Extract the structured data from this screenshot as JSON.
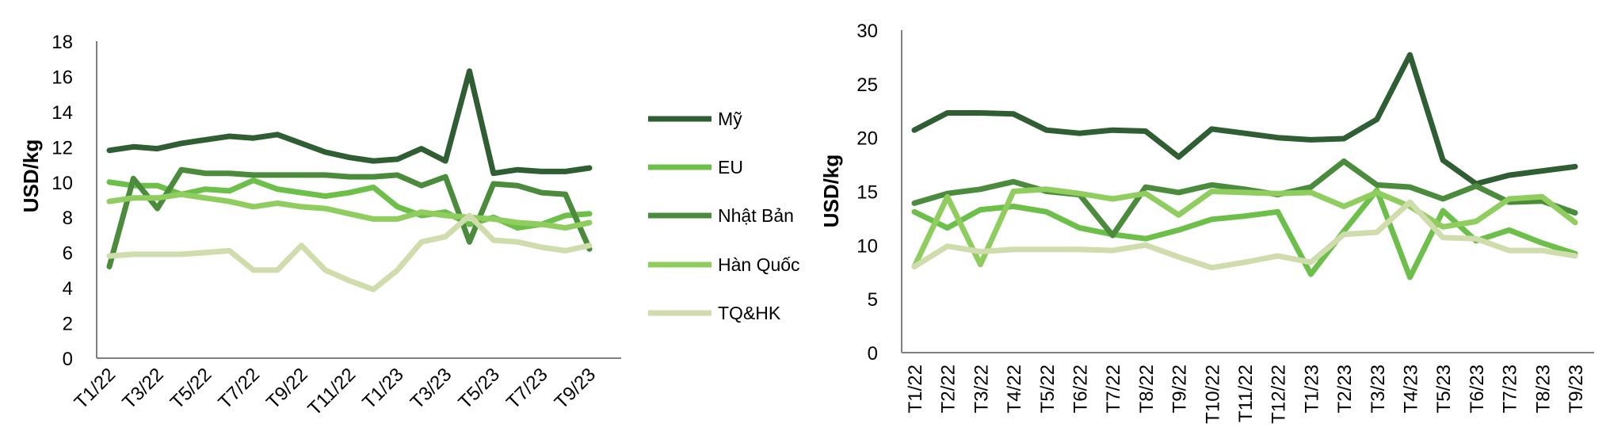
{
  "chart_data": [
    {
      "type": "line",
      "ylabel": "USD/kg",
      "ylim": [
        0,
        18
      ],
      "yticks": [
        0,
        2,
        4,
        6,
        8,
        10,
        12,
        14,
        16,
        18
      ],
      "x": [
        "T1/22",
        "T2/22",
        "T3/22",
        "T4/22",
        "T5/22",
        "T6/22",
        "T7/22",
        "T8/22",
        "T9/22",
        "T10/22",
        "T11/22",
        "T12/22",
        "T1/23",
        "T2/23",
        "T3/23",
        "T4/23",
        "T5/23",
        "T6/23",
        "T7/23",
        "T8/23",
        "T9/23"
      ],
      "xtick_labels": [
        "T1/22",
        "T3/22",
        "T5/22",
        "T7/22",
        "T9/22",
        "T11/22",
        "T1/23",
        "T3/23",
        "T5/23",
        "T7/23",
        "T9/23"
      ],
      "legend_position": "right",
      "grid": false,
      "series": [
        {
          "name": "Mỹ",
          "color": "#2e5e32",
          "values": [
            11.8,
            12.0,
            11.9,
            12.2,
            12.4,
            12.6,
            12.5,
            12.7,
            12.2,
            11.7,
            11.4,
            11.2,
            11.3,
            11.9,
            11.2,
            16.3,
            10.5,
            10.7,
            10.6,
            10.6,
            10.8
          ]
        },
        {
          "name": "EU",
          "color": "#6cc04a",
          "values": [
            10.0,
            9.8,
            9.8,
            9.3,
            9.6,
            9.5,
            10.1,
            9.6,
            9.4,
            9.2,
            9.4,
            9.7,
            8.6,
            8.1,
            8.3,
            7.6,
            8.0,
            7.4,
            7.6,
            8.1,
            8.2
          ]
        },
        {
          "name": "Nhật Bản",
          "color": "#4a8c3c",
          "values": [
            5.2,
            10.2,
            8.5,
            10.7,
            10.5,
            10.5,
            10.4,
            10.4,
            10.4,
            10.4,
            10.3,
            10.3,
            10.4,
            9.8,
            10.3,
            6.6,
            9.9,
            9.8,
            9.4,
            9.3,
            6.2
          ]
        },
        {
          "name": "Hàn Quốc",
          "color": "#8fce5e",
          "values": [
            8.9,
            9.1,
            9.1,
            9.3,
            9.1,
            8.9,
            8.6,
            8.8,
            8.6,
            8.5,
            8.2,
            7.9,
            7.9,
            8.3,
            8.1,
            8.0,
            7.9,
            7.7,
            7.6,
            7.4,
            7.7
          ]
        },
        {
          "name": "TQ&HK",
          "color": "#cfdcab",
          "values": [
            5.8,
            5.9,
            5.9,
            5.9,
            6.0,
            6.1,
            5.0,
            5.0,
            6.4,
            5.0,
            4.4,
            3.9,
            5.0,
            6.6,
            6.9,
            8.1,
            6.7,
            6.6,
            6.3,
            6.1,
            6.4
          ]
        }
      ]
    },
    {
      "type": "line",
      "ylabel": "USD/kg",
      "ylim": [
        0,
        30
      ],
      "yticks": [
        0,
        5,
        10,
        15,
        20,
        25,
        30
      ],
      "x": [
        "T1/22",
        "T2/22",
        "T3/22",
        "T4/22",
        "T5/22",
        "T6/22",
        "T7/22",
        "T8/22",
        "T9/22",
        "T10/22",
        "T11/22",
        "T12/22",
        "T1/23",
        "T2/23",
        "T3/23",
        "T4/23",
        "T5/23",
        "T6/23",
        "T7/23",
        "T8/23",
        "T9/23"
      ],
      "xtick_labels": [
        "T1/22",
        "T2/22",
        "T3/22",
        "T4/22",
        "T5/22",
        "T6/22",
        "T7/22",
        "T8/22",
        "T9/22",
        "T10/22",
        "T11/22",
        "T12/22",
        "T1/23",
        "T2/23",
        "T3/23",
        "T4/23",
        "T5/23",
        "T6/23",
        "T7/23",
        "T8/23",
        "T9/23"
      ],
      "grid": false,
      "series": [
        {
          "color": "#2e5e32",
          "values": [
            20.7,
            22.3,
            22.3,
            22.2,
            20.7,
            20.4,
            20.7,
            20.6,
            18.2,
            20.8,
            20.4,
            20.0,
            19.8,
            19.9,
            21.7,
            27.7,
            17.9,
            15.7,
            16.5,
            16.9,
            17.3
          ]
        },
        {
          "color": "#6cc04a",
          "values": [
            13.1,
            11.6,
            13.3,
            13.6,
            13.1,
            11.6,
            11.0,
            10.6,
            11.4,
            12.4,
            12.7,
            13.1,
            7.3,
            11.3,
            15.1,
            7.0,
            13.2,
            10.4,
            11.4,
            10.2,
            9.2
          ]
        },
        {
          "color": "#4a8c3c",
          "values": [
            13.9,
            14.8,
            15.2,
            15.9,
            15.0,
            14.7,
            10.9,
            15.4,
            14.9,
            15.6,
            15.2,
            14.7,
            15.4,
            17.8,
            15.6,
            15.4,
            14.3,
            15.5,
            14.0,
            14.1,
            13.0
          ]
        },
        {
          "color": "#8fce5e",
          "values": [
            8.0,
            14.5,
            8.2,
            15.0,
            15.2,
            14.8,
            14.3,
            14.8,
            12.8,
            15.0,
            14.9,
            14.8,
            14.9,
            13.6,
            14.9,
            13.6,
            11.7,
            12.2,
            14.3,
            14.5,
            12.1
          ]
        },
        {
          "color": "#cfdcab",
          "values": [
            8.0,
            9.9,
            9.4,
            9.6,
            9.6,
            9.6,
            9.5,
            10.0,
            8.9,
            7.9,
            8.4,
            9.0,
            8.4,
            11.0,
            11.2,
            14.0,
            10.7,
            10.6,
            9.5,
            9.5,
            9.0
          ]
        }
      ]
    }
  ]
}
